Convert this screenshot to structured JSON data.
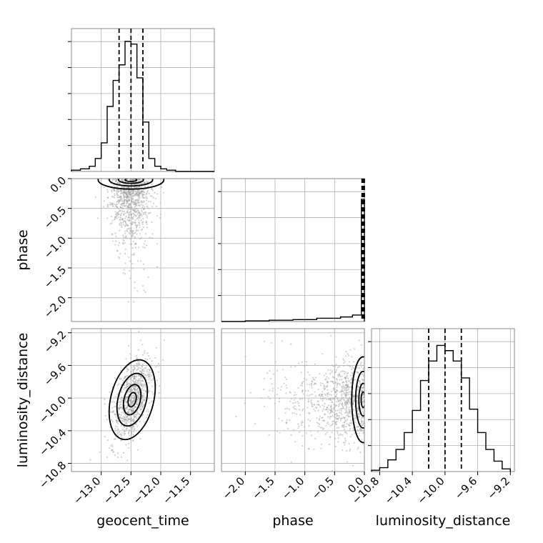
{
  "chart_data": {
    "type": "corner",
    "parameters": [
      "geocent_time",
      "phase",
      "luminosity_distance"
    ],
    "axes": {
      "geocent_time": {
        "range": [
          -13.5,
          -11.1
        ],
        "ticks": [
          -13.0,
          -12.5,
          -12.0,
          -11.5
        ],
        "tick_labels": [
          "−13.0",
          "−12.5",
          "−12.0",
          "−11.5"
        ]
      },
      "phase": {
        "range": [
          -2.4,
          0.0
        ],
        "ticks": [
          -2.0,
          -1.5,
          -1.0,
          -0.5,
          0.0
        ],
        "tick_labels": [
          "−2.0",
          "−1.5",
          "−1.0",
          "−0.5",
          "0.0"
        ]
      },
      "luminosity_distance": {
        "range": [
          -10.9,
          -9.15
        ],
        "ticks": [
          -10.8,
          -10.4,
          -10.0,
          -9.6,
          -9.2
        ],
        "tick_labels": [
          "−10.8",
          "−10.4",
          "−10.0",
          "−9.6",
          "−9.2"
        ]
      }
    },
    "histograms": {
      "geocent_time": {
        "bin_edges": [
          -13.5,
          -13.35,
          -13.2,
          -13.1,
          -13.0,
          -12.9,
          -12.8,
          -12.7,
          -12.6,
          -12.5,
          -12.4,
          -12.3,
          -12.2,
          -12.1,
          -12.0,
          -11.9,
          -11.75,
          -11.6,
          -11.1
        ],
        "counts": [
          0.01,
          0.02,
          0.04,
          0.1,
          0.22,
          0.5,
          0.7,
          0.82,
          1.0,
          0.98,
          0.72,
          0.38,
          0.1,
          0.04,
          0.02,
          0.01,
          0.0,
          0.0
        ],
        "quantiles": [
          -12.7,
          -12.5,
          -12.3
        ]
      },
      "phase": {
        "bin_edges": [
          -2.4,
          -2.0,
          -1.6,
          -1.2,
          -0.8,
          -0.4,
          -0.2,
          -0.05,
          0.0
        ],
        "counts": [
          0.0,
          0.005,
          0.01,
          0.015,
          0.025,
          0.035,
          0.05,
          0.94
        ],
        "quantiles": [
          -0.04,
          -0.02,
          0.0
        ]
      },
      "luminosity_distance": {
        "bin_edges": [
          -10.9,
          -10.8,
          -10.7,
          -10.6,
          -10.5,
          -10.4,
          -10.3,
          -10.2,
          -10.1,
          -10.0,
          -9.9,
          -9.8,
          -9.7,
          -9.6,
          -9.5,
          -9.4,
          -9.3,
          -9.2
        ],
        "counts": [
          0.01,
          0.03,
          0.09,
          0.17,
          0.3,
          0.47,
          0.7,
          0.85,
          0.97,
          0.93,
          0.85,
          0.72,
          0.48,
          0.3,
          0.17,
          0.08,
          0.02
        ],
        "quantiles": [
          -10.2,
          -10.0,
          -9.8
        ]
      }
    },
    "pairs": [
      {
        "x": "geocent_time",
        "y": "phase",
        "center": [
          -12.5,
          -0.02
        ]
      },
      {
        "x": "geocent_time",
        "y": "luminosity_distance",
        "center": [
          -12.48,
          -10.02
        ]
      },
      {
        "x": "phase",
        "y": "luminosity_distance",
        "center": [
          -0.02,
          -10.02
        ]
      }
    ],
    "grid": true
  }
}
